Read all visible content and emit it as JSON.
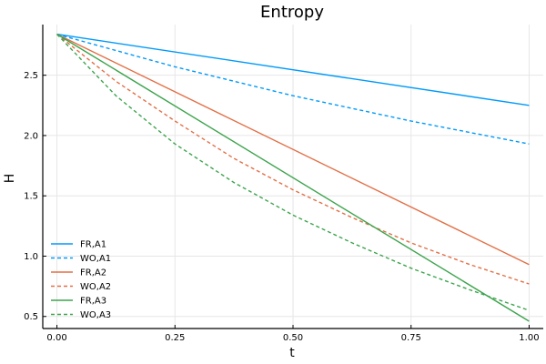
{
  "chart_data": {
    "type": "line",
    "title": "Entropy",
    "xlabel": "t",
    "ylabel": "H",
    "xlim": [
      -0.03,
      1.03
    ],
    "ylim": [
      0.4,
      2.92
    ],
    "xticks": [
      0.0,
      0.25,
      0.5,
      0.75,
      1.0
    ],
    "xtick_labels": [
      "0.00",
      "0.25",
      "0.50",
      "0.75",
      "1.00"
    ],
    "yticks": [
      0.5,
      1.0,
      1.5,
      2.0,
      2.5
    ],
    "ytick_labels": [
      "0.5",
      "1.0",
      "1.5",
      "2.0",
      "2.5"
    ],
    "grid": true,
    "legend_position": "bottom-left",
    "series": [
      {
        "name": "FR,A1",
        "color": "#009af9",
        "dash": "solid",
        "x": [
          0.0,
          1.0
        ],
        "y": [
          2.84,
          2.25
        ]
      },
      {
        "name": "WO,A1",
        "color": "#009af9",
        "dash": "dashed",
        "x": [
          0.0,
          0.25,
          0.5,
          0.75,
          1.0
        ],
        "y": [
          2.84,
          2.57,
          2.33,
          2.12,
          1.93
        ]
      },
      {
        "name": "FR,A2",
        "color": "#e26f46",
        "dash": "solid",
        "x": [
          0.0,
          1.0
        ],
        "y": [
          2.84,
          0.93
        ]
      },
      {
        "name": "WO,A2",
        "color": "#e26f46",
        "dash": "dashed",
        "x": [
          0.0,
          0.125,
          0.25,
          0.375,
          0.5,
          0.625,
          0.75,
          0.875,
          1.0
        ],
        "y": [
          2.84,
          2.45,
          2.12,
          1.81,
          1.55,
          1.32,
          1.11,
          0.93,
          0.77
        ]
      },
      {
        "name": "FR,A3",
        "color": "#3da44d",
        "dash": "solid",
        "x": [
          0.0,
          1.0
        ],
        "y": [
          2.84,
          0.46
        ]
      },
      {
        "name": "WO,A3",
        "color": "#3da44d",
        "dash": "dashed",
        "x": [
          0.0,
          0.125,
          0.25,
          0.375,
          0.5,
          0.625,
          0.75,
          0.875,
          1.0
        ],
        "y": [
          2.84,
          2.33,
          1.93,
          1.61,
          1.34,
          1.11,
          0.9,
          0.72,
          0.55
        ]
      }
    ]
  }
}
